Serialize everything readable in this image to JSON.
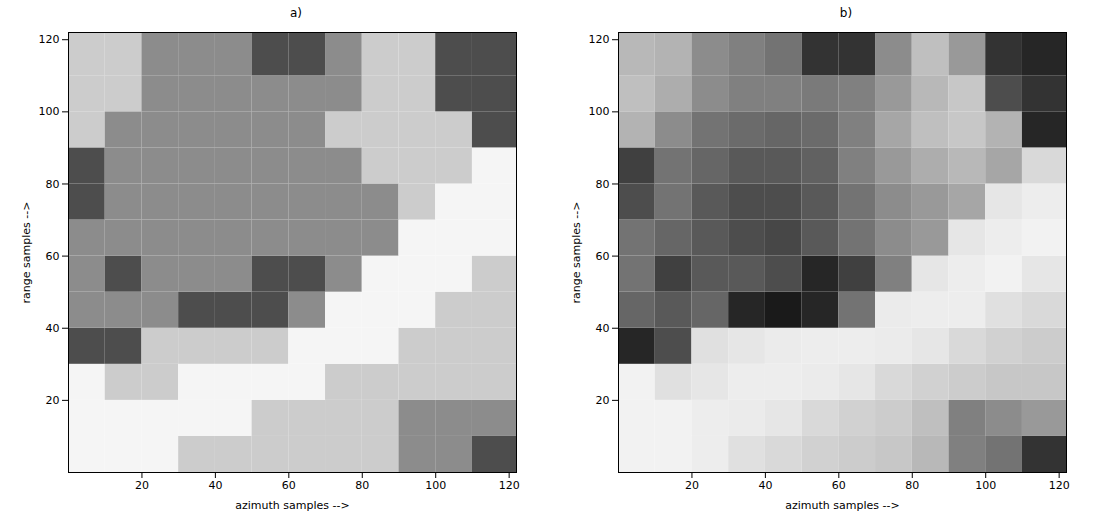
{
  "chart_data": [
    {
      "type": "heatmap",
      "title": "a)",
      "x_label": "azimuth samples -->",
      "y_label": "range samples -->",
      "xlim": [
        0,
        122
      ],
      "ylim": [
        0,
        122
      ],
      "xticks": [
        20,
        40,
        60,
        80,
        100,
        120
      ],
      "yticks": [
        20,
        40,
        60,
        80,
        100,
        120
      ],
      "x_edges": [
        0,
        10,
        20,
        30,
        40,
        50,
        60,
        70,
        80,
        90,
        100,
        110,
        122
      ],
      "y_edges": [
        0,
        10,
        20,
        30,
        40,
        50,
        60,
        70,
        80,
        90,
        100,
        110,
        122
      ],
      "cell_range": [
        0,
        1
      ],
      "cells": [
        [
          0.96,
          0.96,
          0.96,
          0.8,
          0.8,
          0.8,
          0.8,
          0.8,
          0.8,
          0.55,
          0.55,
          0.3
        ],
        [
          0.96,
          0.96,
          0.96,
          0.96,
          0.96,
          0.8,
          0.8,
          0.8,
          0.8,
          0.55,
          0.55,
          0.55
        ],
        [
          0.96,
          0.8,
          0.8,
          0.96,
          0.96,
          0.96,
          0.96,
          0.8,
          0.8,
          0.8,
          0.8,
          0.8
        ],
        [
          0.3,
          0.3,
          0.8,
          0.8,
          0.8,
          0.8,
          0.96,
          0.96,
          0.96,
          0.8,
          0.8,
          0.8
        ],
        [
          0.55,
          0.55,
          0.55,
          0.3,
          0.3,
          0.3,
          0.55,
          0.96,
          0.96,
          0.96,
          0.8,
          0.8
        ],
        [
          0.55,
          0.3,
          0.55,
          0.55,
          0.55,
          0.3,
          0.3,
          0.55,
          0.96,
          0.96,
          0.96,
          0.8
        ],
        [
          0.55,
          0.55,
          0.55,
          0.55,
          0.55,
          0.55,
          0.55,
          0.55,
          0.55,
          0.96,
          0.96,
          0.96
        ],
        [
          0.3,
          0.55,
          0.55,
          0.55,
          0.55,
          0.55,
          0.55,
          0.55,
          0.55,
          0.8,
          0.96,
          0.96
        ],
        [
          0.3,
          0.55,
          0.55,
          0.55,
          0.55,
          0.55,
          0.55,
          0.55,
          0.8,
          0.8,
          0.8,
          0.96
        ],
        [
          0.8,
          0.55,
          0.55,
          0.55,
          0.55,
          0.55,
          0.55,
          0.8,
          0.8,
          0.8,
          0.8,
          0.3
        ],
        [
          0.8,
          0.8,
          0.55,
          0.55,
          0.55,
          0.55,
          0.55,
          0.55,
          0.8,
          0.8,
          0.3,
          0.3
        ],
        [
          0.8,
          0.8,
          0.55,
          0.55,
          0.55,
          0.3,
          0.3,
          0.55,
          0.8,
          0.8,
          0.3,
          0.3
        ]
      ]
    },
    {
      "type": "heatmap",
      "title": "b)",
      "x_label": "azimuth samples -->",
      "y_label": "range samples -->",
      "xlim": [
        0,
        122
      ],
      "ylim": [
        0,
        122
      ],
      "xticks": [
        20,
        40,
        60,
        80,
        100,
        120
      ],
      "yticks": [
        20,
        40,
        60,
        80,
        100,
        120
      ],
      "x_edges": [
        0,
        10,
        20,
        30,
        40,
        50,
        60,
        70,
        80,
        90,
        100,
        110,
        122
      ],
      "y_edges": [
        0,
        10,
        20,
        30,
        40,
        50,
        60,
        70,
        80,
        90,
        100,
        110,
        122
      ],
      "cell_range": [
        0,
        1
      ],
      "cells": [
        [
          0.95,
          0.95,
          0.93,
          0.88,
          0.85,
          0.82,
          0.8,
          0.78,
          0.72,
          0.5,
          0.45,
          0.2
        ],
        [
          0.95,
          0.95,
          0.93,
          0.92,
          0.9,
          0.85,
          0.82,
          0.8,
          0.75,
          0.5,
          0.55,
          0.6
        ],
        [
          0.95,
          0.88,
          0.9,
          0.93,
          0.93,
          0.92,
          0.9,
          0.85,
          0.82,
          0.8,
          0.78,
          0.78
        ],
        [
          0.15,
          0.3,
          0.88,
          0.9,
          0.92,
          0.93,
          0.93,
          0.92,
          0.9,
          0.85,
          0.82,
          0.8
        ],
        [
          0.4,
          0.35,
          0.4,
          0.15,
          0.1,
          0.15,
          0.45,
          0.92,
          0.93,
          0.93,
          0.88,
          0.85
        ],
        [
          0.45,
          0.25,
          0.35,
          0.35,
          0.3,
          0.15,
          0.25,
          0.5,
          0.9,
          0.93,
          0.95,
          0.9
        ],
        [
          0.45,
          0.4,
          0.35,
          0.3,
          0.28,
          0.35,
          0.45,
          0.55,
          0.6,
          0.9,
          0.93,
          0.95
        ],
        [
          0.3,
          0.45,
          0.35,
          0.3,
          0.3,
          0.35,
          0.45,
          0.55,
          0.6,
          0.65,
          0.9,
          0.93
        ],
        [
          0.25,
          0.45,
          0.4,
          0.35,
          0.35,
          0.38,
          0.5,
          0.6,
          0.68,
          0.72,
          0.65,
          0.85
        ],
        [
          0.7,
          0.55,
          0.45,
          0.42,
          0.4,
          0.42,
          0.5,
          0.65,
          0.75,
          0.78,
          0.7,
          0.15
        ],
        [
          0.75,
          0.68,
          0.55,
          0.5,
          0.5,
          0.48,
          0.5,
          0.6,
          0.72,
          0.78,
          0.3,
          0.2
        ],
        [
          0.72,
          0.7,
          0.55,
          0.5,
          0.45,
          0.2,
          0.2,
          0.55,
          0.75,
          0.6,
          0.2,
          0.15
        ]
      ]
    }
  ]
}
